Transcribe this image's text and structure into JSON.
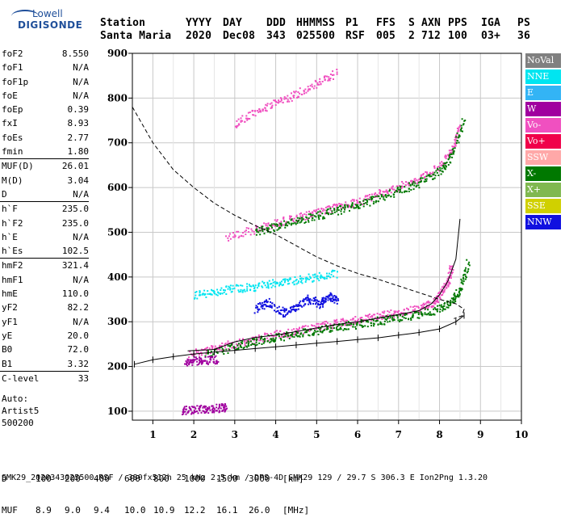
{
  "logo": {
    "line1": "Lowell",
    "line2": "DIGISONDE"
  },
  "header": {
    "labels": [
      "Station",
      "YYYY",
      "DAY",
      "DDD",
      "HHMMSS",
      "P1",
      "FFS",
      "S",
      "AXN",
      "PPS",
      "IGA",
      "PS"
    ],
    "values": [
      "Santa Maria",
      "2020",
      "Dec08",
      "343",
      "025500",
      "RSF",
      "005",
      "2",
      "712",
      "100",
      "03+",
      "36"
    ]
  },
  "params": {
    "group1": [
      {
        "k": "foF2",
        "v": "8.550"
      },
      {
        "k": "foF1",
        "v": "N/A"
      },
      {
        "k": "foF1p",
        "v": "N/A"
      },
      {
        "k": "foE",
        "v": "N/A"
      },
      {
        "k": "foEp",
        "v": "0.39"
      },
      {
        "k": "fxI",
        "v": "8.93"
      },
      {
        "k": "foEs",
        "v": "2.77"
      },
      {
        "k": "fmin",
        "v": "1.80"
      }
    ],
    "group2": [
      {
        "k": "MUF(D)",
        "v": "26.01"
      },
      {
        "k": "M(D)",
        "v": "3.04"
      },
      {
        "k": "D",
        "v": "N/A"
      }
    ],
    "group3": [
      {
        "k": "h`F",
        "v": "235.0"
      },
      {
        "k": "h`F2",
        "v": "235.0"
      },
      {
        "k": "h`E",
        "v": "N/A"
      },
      {
        "k": "h`Es",
        "v": "102.5"
      }
    ],
    "group4": [
      {
        "k": "hmF2",
        "v": "321.4"
      },
      {
        "k": "hmF1",
        "v": "N/A"
      },
      {
        "k": "hmE",
        "v": "110.0"
      },
      {
        "k": "yF2",
        "v": "82.2"
      },
      {
        "k": "yF1",
        "v": "N/A"
      },
      {
        "k": "yE",
        "v": "20.0"
      },
      {
        "k": "B0",
        "v": "72.0"
      },
      {
        "k": "B1",
        "v": "3.32"
      }
    ],
    "group5": [
      {
        "k": "C-level",
        "v": "33"
      }
    ]
  },
  "auto": {
    "line1": "Auto:",
    "line2": "Artist5",
    "line3": "500200"
  },
  "legend": [
    {
      "label": "NoVal",
      "color": "#808080"
    },
    {
      "label": "NNE",
      "color": "#00e5f0"
    },
    {
      "label": "E",
      "color": "#33b4f5"
    },
    {
      "label": "W",
      "color": "#a0009f"
    },
    {
      "label": "Vo-",
      "color": "#f050c0"
    },
    {
      "label": "Vo+",
      "color": "#f0004a"
    },
    {
      "label": "SSW",
      "color": "#ffa8a8"
    },
    {
      "label": "X-",
      "color": "#007800"
    },
    {
      "label": "X+",
      "color": "#80b850"
    },
    {
      "label": "SSE",
      "color": "#d0d000"
    },
    {
      "label": "NNW",
      "color": "#1010e0"
    }
  ],
  "footer": {
    "d_label": "D",
    "d_values": [
      "100",
      "200",
      "400",
      "600",
      "800",
      "1000",
      "1500",
      "3000",
      "[km]"
    ],
    "muf_label": "MUF",
    "muf_values": [
      "8.9",
      "9.0",
      "9.4",
      "10.0",
      "10.9",
      "12.2",
      "16.1",
      "26.0",
      "[MHz]"
    ],
    "file_line": "SMK29_2020343025500.RSF / 380fx512h 25 kHz 2.5 km / DPS-4D SMK29 129 / 29.7 S 306.3 E Ion2Png 1.3.20"
  },
  "chart_data": {
    "type": "scatter",
    "xlim": [
      0.5,
      10
    ],
    "ylim": [
      80,
      900
    ],
    "xticks": [
      "1",
      "2",
      "3",
      "4",
      "5",
      "6",
      "7",
      "8",
      "9",
      "10"
    ],
    "yticks": [
      "100",
      "200",
      "300",
      "400",
      "500",
      "600",
      "700",
      "800",
      "900"
    ],
    "ytick_values": [
      100,
      200,
      300,
      400,
      500,
      600,
      700,
      800,
      900
    ],
    "grid": true,
    "traces": [
      {
        "name": "Vo-",
        "color": "#f050c0",
        "points": [
          [
            1.9,
            230
          ],
          [
            2.5,
            242
          ],
          [
            3.0,
            252
          ],
          [
            3.5,
            262
          ],
          [
            4.0,
            272
          ],
          [
            4.5,
            280
          ],
          [
            5.0,
            290
          ],
          [
            5.5,
            298
          ],
          [
            6.0,
            305
          ],
          [
            6.5,
            314
          ],
          [
            7.0,
            322
          ],
          [
            7.5,
            330
          ],
          [
            7.8,
            342
          ],
          [
            8.0,
            360
          ],
          [
            8.2,
            390
          ],
          [
            8.3,
            430
          ]
        ]
      },
      {
        "name": "X-",
        "color": "#007800",
        "points": [
          [
            2.3,
            228
          ],
          [
            3.0,
            245
          ],
          [
            3.5,
            258
          ],
          [
            4.0,
            266
          ],
          [
            4.5,
            274
          ],
          [
            5.0,
            282
          ],
          [
            5.5,
            290
          ],
          [
            6.0,
            296
          ],
          [
            6.5,
            303
          ],
          [
            7.0,
            310
          ],
          [
            7.5,
            318
          ],
          [
            8.0,
            330
          ],
          [
            8.3,
            350
          ],
          [
            8.5,
            375
          ],
          [
            8.7,
            440
          ]
        ]
      },
      {
        "name": "Vo-",
        "color": "#f050c0",
        "points": [
          [
            2.8,
            490
          ],
          [
            3.5,
            508
          ],
          [
            4.0,
            522
          ],
          [
            4.5,
            534
          ],
          [
            5.0,
            545
          ],
          [
            5.5,
            558
          ],
          [
            6.0,
            570
          ],
          [
            6.5,
            586
          ],
          [
            7.0,
            602
          ],
          [
            7.5,
            622
          ],
          [
            8.0,
            650
          ],
          [
            8.3,
            690
          ],
          [
            8.5,
            740
          ]
        ]
      },
      {
        "name": "X-",
        "color": "#007800",
        "points": [
          [
            3.5,
            502
          ],
          [
            4.0,
            514
          ],
          [
            4.5,
            526
          ],
          [
            5.0,
            538
          ],
          [
            5.5,
            550
          ],
          [
            6.0,
            562
          ],
          [
            6.5,
            578
          ],
          [
            7.0,
            594
          ],
          [
            7.5,
            612
          ],
          [
            8.0,
            638
          ],
          [
            8.3,
            672
          ],
          [
            8.6,
            760
          ]
        ]
      },
      {
        "name": "NNE",
        "color": "#00e5f0",
        "points": [
          [
            2.0,
            360
          ],
          [
            2.5,
            368
          ],
          [
            3.0,
            375
          ],
          [
            3.5,
            380
          ],
          [
            4.0,
            388
          ],
          [
            4.5,
            395
          ],
          [
            5.0,
            402
          ],
          [
            5.5,
            410
          ]
        ]
      },
      {
        "name": "NNW",
        "color": "#1010e0",
        "points": [
          [
            3.5,
            330
          ],
          [
            3.8,
            345
          ],
          [
            4.2,
            320
          ],
          [
            4.5,
            335
          ],
          [
            4.8,
            352
          ],
          [
            5.1,
            340
          ],
          [
            5.3,
            360
          ],
          [
            5.5,
            350
          ]
        ]
      },
      {
        "name": "Vo-",
        "color": "#f050c0",
        "points": [
          [
            3.0,
            745
          ],
          [
            3.5,
            770
          ],
          [
            4.0,
            790
          ],
          [
            4.5,
            810
          ],
          [
            5.0,
            835
          ],
          [
            5.5,
            860
          ]
        ]
      },
      {
        "name": "W",
        "color": "#a0009f",
        "points": [
          [
            1.8,
            212
          ],
          [
            2.0,
            214
          ],
          [
            2.3,
            215
          ],
          [
            2.6,
            218
          ]
        ]
      },
      {
        "name": "W",
        "color": "#a0009f",
        "points": [
          [
            1.7,
            103
          ],
          [
            2.0,
            105
          ],
          [
            2.3,
            106
          ],
          [
            2.6,
            108
          ],
          [
            2.8,
            110
          ]
        ]
      }
    ],
    "profile": [
      [
        1.85,
        235
      ],
      [
        2.5,
        238
      ],
      [
        3.0,
        255
      ],
      [
        3.5,
        265
      ],
      [
        4.0,
        270
      ],
      [
        4.5,
        278
      ],
      [
        5.0,
        286
      ],
      [
        5.5,
        294
      ],
      [
        6.0,
        300
      ],
      [
        6.5,
        308
      ],
      [
        7.0,
        316
      ],
      [
        7.5,
        325
      ],
      [
        7.8,
        340
      ],
      [
        8.0,
        360
      ],
      [
        8.2,
        390
      ],
      [
        8.4,
        440
      ],
      [
        8.5,
        530
      ]
    ],
    "mhf_curve": [
      [
        0.55,
        205
      ],
      [
        1.0,
        215
      ],
      [
        1.5,
        222
      ],
      [
        2.0,
        228
      ],
      [
        2.5,
        232
      ],
      [
        3.0,
        236
      ],
      [
        3.5,
        240
      ],
      [
        4.0,
        244
      ],
      [
        4.5,
        248
      ],
      [
        5.0,
        252
      ],
      [
        5.5,
        256
      ],
      [
        6.0,
        260
      ],
      [
        6.5,
        264
      ],
      [
        7.0,
        270
      ],
      [
        7.5,
        276
      ],
      [
        8.0,
        284
      ],
      [
        8.4,
        300
      ],
      [
        8.6,
        314
      ]
    ],
    "dashed_curve": [
      [
        0.5,
        780
      ],
      [
        1.0,
        700
      ],
      [
        1.5,
        640
      ],
      [
        2.0,
        600
      ],
      [
        2.5,
        565
      ],
      [
        3.0,
        538
      ],
      [
        3.5,
        515
      ],
      [
        4.0,
        495
      ],
      [
        4.5,
        470
      ],
      [
        5.0,
        445
      ],
      [
        5.5,
        425
      ],
      [
        6.0,
        408
      ],
      [
        6.5,
        395
      ],
      [
        7.0,
        380
      ],
      [
        7.5,
        365
      ],
      [
        8.0,
        350
      ],
      [
        8.4,
        340
      ],
      [
        8.6,
        328
      ],
      [
        8.55,
        313
      ],
      [
        8.35,
        307
      ]
    ]
  }
}
